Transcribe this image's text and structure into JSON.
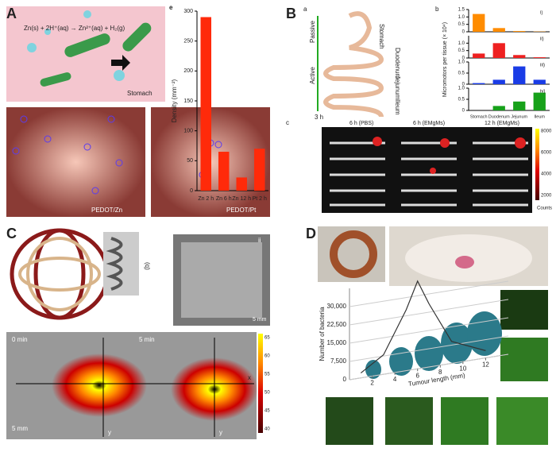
{
  "panels": {
    "A": {
      "label": "A",
      "equation": "Zn(s) + 2H⁺(aq) → Zn²⁺(aq) + H₂(g)",
      "organ": "Stomach",
      "image1": "PEDOT/Zn",
      "image2": "PEDOT/Pt"
    },
    "B": {
      "label": "B",
      "sub_a": "a",
      "sub_b": "b",
      "sub_c": "c",
      "passive": "Passive",
      "active": "Active",
      "time": "3 h",
      "organs": [
        "Stomach",
        "Duodenum",
        "Jejunum",
        "Ileum"
      ],
      "ylabel": "Micromotors per tissue (× 10⁴)",
      "images": [
        "6 h (PBS)",
        "6 h (EMgMs)",
        "12 h (EMgMs)"
      ],
      "colorbar": [
        "8000",
        "6000",
        "4000",
        "2000"
      ],
      "colorbar_label": "Counts"
    },
    "C": {
      "label": "C",
      "sub_i": "(q)",
      "sub_ii": "ii",
      "scale1": "5 mm",
      "t0": "0 min",
      "t1": "5 min",
      "x": "x",
      "y": "y",
      "scale2": "5 mm",
      "colorbar": [
        "65",
        "60",
        "55",
        "50",
        "45",
        "40"
      ]
    },
    "D": {
      "label": "D"
    }
  },
  "chart_data": [
    {
      "type": "bar",
      "label": "e",
      "ylabel": "Density (mm⁻²)",
      "categories": [
        "Zn 2 h",
        "Zn 6 h",
        "Zn 12 h",
        "Pt 2 h"
      ],
      "values": [
        290,
        65,
        22,
        70
      ],
      "color": "#ff2a0a",
      "ylim": [
        0,
        300
      ],
      "yticks": [
        0,
        50,
        100,
        150,
        200,
        250,
        300
      ]
    },
    {
      "type": "bar",
      "label": "i)",
      "values": [
        1.2,
        0.25,
        0.05,
        0.02
      ],
      "color": "#ff8c00",
      "ylim": [
        0,
        1.5
      ],
      "yticks": [
        0,
        0.5,
        {
          "value": 1,
          "label": "1.0"
        },
        1.5
      ]
    },
    {
      "type": "bar",
      "label": "ii)",
      "values": [
        0.3,
        1.0,
        0.2,
        0.05
      ],
      "color": "#ee2020",
      "ylim": [
        0,
        1.5
      ],
      "yticks": [
        0,
        0.5,
        {
          "value": 1,
          "label": "1.0"
        }
      ]
    },
    {
      "type": "bar",
      "label": "iii)",
      "values": [
        0.05,
        0.2,
        0.8,
        0.2
      ],
      "color": "#1a3ce6",
      "ylim": [
        0,
        1.0
      ],
      "yticks": [
        0,
        0.5,
        {
          "value": 1,
          "label": "1.0"
        }
      ]
    },
    {
      "type": "bar",
      "label": "iv)",
      "categories": [
        "Stomach",
        "Duodenum",
        "Jejunum",
        "Ileum"
      ],
      "values": [
        0,
        0.2,
        0.4,
        0.8
      ],
      "color": "#17a11a",
      "ylim": [
        0,
        1.0
      ],
      "yticks": [
        0,
        0.5,
        {
          "value": 1,
          "label": "1.0"
        }
      ]
    },
    {
      "type": "line",
      "ylabel": "Number of bacteria",
      "xlabel": "Tumour length (mm)",
      "x": [
        1,
        3,
        5,
        6,
        7,
        9,
        12
      ],
      "values": [
        2000,
        8000,
        25000,
        36000,
        26000,
        9000,
        3000
      ],
      "color": "#333333",
      "xlim": [
        0,
        14
      ],
      "ylim": [
        0,
        37500
      ],
      "xticks": [
        2,
        4,
        6,
        8,
        10,
        12
      ],
      "yticks": [
        0,
        {
          "value": 7500,
          "label": "7,500"
        },
        {
          "value": 15000,
          "label": "15,000"
        },
        {
          "value": 22500,
          "label": "22,500"
        },
        {
          "value": 30000,
          "label": "30,000"
        }
      ]
    }
  ]
}
